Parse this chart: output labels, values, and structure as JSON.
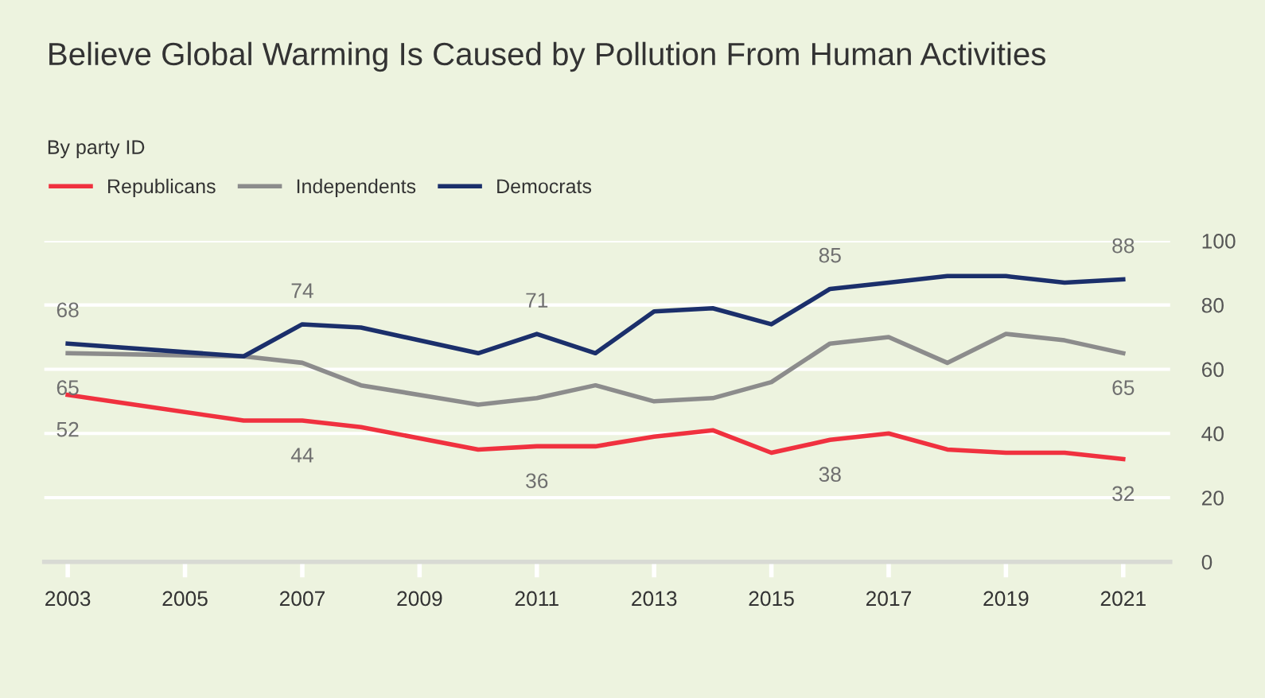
{
  "chart_data": {
    "type": "line",
    "title": "Believe Global Warming Is Caused by Pollution From Human Activities",
    "subtitle": "By party ID",
    "x": [
      2003,
      2006,
      2007,
      2008,
      2010,
      2011,
      2012,
      2013,
      2014,
      2015,
      2016,
      2017,
      2018,
      2019,
      2020,
      2021
    ],
    "series": [
      {
        "name": "Republicans",
        "color": "#f0313f",
        "values": [
          52,
          44,
          44,
          42,
          35,
          36,
          36,
          39,
          41,
          34,
          38,
          40,
          35,
          34,
          34,
          32
        ],
        "value_labels": [
          "52",
          null,
          "44",
          null,
          null,
          "36",
          null,
          null,
          null,
          null,
          "38",
          null,
          null,
          null,
          null,
          "32"
        ]
      },
      {
        "name": "Independents",
        "color": "#8c8c8c",
        "values": [
          65,
          64,
          62,
          55,
          49,
          51,
          55,
          50,
          51,
          56,
          68,
          70,
          62,
          71,
          69,
          65
        ],
        "value_labels": [
          "65",
          null,
          null,
          null,
          null,
          null,
          null,
          null,
          null,
          null,
          null,
          null,
          null,
          null,
          null,
          "65"
        ]
      },
      {
        "name": "Democrats",
        "color": "#1b2f6b",
        "values": [
          68,
          64,
          74,
          73,
          65,
          71,
          65,
          78,
          79,
          74,
          85,
          87,
          89,
          89,
          87,
          88
        ],
        "value_labels": [
          "68",
          null,
          "74",
          null,
          null,
          "71",
          null,
          null,
          null,
          null,
          "85",
          null,
          null,
          null,
          null,
          "88"
        ]
      }
    ],
    "xlim": [
      2002.6,
      2021.8
    ],
    "xticks": [
      2003,
      2005,
      2007,
      2009,
      2011,
      2013,
      2015,
      2017,
      2019,
      2021
    ],
    "ylim": [
      0,
      100
    ],
    "yticks": [
      0,
      20,
      40,
      60,
      80,
      100
    ],
    "grid": "y",
    "legend": "top left",
    "marker": "none",
    "line_style": "solid"
  }
}
